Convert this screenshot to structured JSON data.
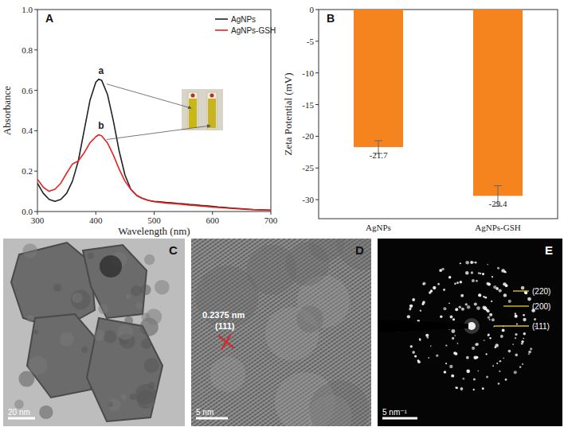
{
  "chart_data": [
    {
      "type": "line",
      "panel": "A",
      "x_label": "Wavelength (nm)",
      "y_label": "Absorbance",
      "x": [
        300,
        310,
        320,
        330,
        340,
        350,
        360,
        370,
        380,
        390,
        400,
        405,
        410,
        420,
        430,
        440,
        450,
        460,
        470,
        480,
        490,
        500,
        510,
        520,
        530,
        540,
        550,
        560,
        570,
        580,
        590,
        600,
        610,
        620,
        630,
        640,
        650,
        660,
        670,
        680,
        690,
        700
      ],
      "series": [
        {
          "name": "AgNPs",
          "color": "#222222",
          "values": [
            0.14,
            0.09,
            0.06,
            0.05,
            0.06,
            0.09,
            0.15,
            0.25,
            0.4,
            0.55,
            0.64,
            0.655,
            0.65,
            0.58,
            0.45,
            0.3,
            0.18,
            0.11,
            0.08,
            0.065,
            0.055,
            0.05,
            0.048,
            0.045,
            0.043,
            0.04,
            0.038,
            0.035,
            0.033,
            0.03,
            0.028,
            0.025,
            0.022,
            0.02,
            0.018,
            0.016,
            0.014,
            0.012,
            0.01,
            0.009,
            0.008,
            0.007
          ]
        },
        {
          "name": "AgNPs-GSH",
          "color": "#e8231f",
          "values": [
            0.16,
            0.12,
            0.1,
            0.11,
            0.14,
            0.19,
            0.235,
            0.25,
            0.29,
            0.34,
            0.37,
            0.38,
            0.375,
            0.34,
            0.28,
            0.21,
            0.15,
            0.11,
            0.08,
            0.065,
            0.055,
            0.048,
            0.045,
            0.042,
            0.04,
            0.038,
            0.035,
            0.032,
            0.03,
            0.027,
            0.025,
            0.022,
            0.02,
            0.018,
            0.016,
            0.014,
            0.012,
            0.01,
            0.009,
            0.008,
            0.007,
            0.006
          ]
        }
      ],
      "xlim": [
        300,
        700
      ],
      "xticks": [
        300,
        400,
        500,
        600,
        700
      ],
      "ylim": [
        0,
        1
      ],
      "yticks": [
        {
          "value": 0,
          "label": "0.0"
        },
        0.2,
        0.4,
        0.6,
        {
          "value": 0.8,
          "label": "0.8"
        },
        {
          "value": 1,
          "label": "1.0"
        }
      ],
      "legend": "upper right",
      "annotations": [
        {
          "text": "a",
          "x": 405,
          "y": 0.655
        },
        {
          "text": "b",
          "x": 405,
          "y": 0.38
        }
      ]
    },
    {
      "type": "bar",
      "panel": "B",
      "y_label": "Zeta Potential (mV)",
      "categories": [
        "AgNPs",
        "AgNPs-GSH"
      ],
      "values": [
        -21.7,
        -29.4
      ],
      "errors": [
        1.0,
        1.6
      ],
      "color": "#f5841f",
      "ylim": [
        -33,
        0
      ],
      "yticks": [
        0,
        -5,
        -10,
        -15,
        -20,
        -25,
        -30
      ],
      "data_labels": true
    }
  ],
  "images": [
    {
      "panel": "C",
      "scale_bar": "20 nm"
    },
    {
      "panel": "D",
      "annotations": [
        "0.2375 nm",
        "(111)"
      ],
      "scale_bar": "5 nm"
    },
    {
      "panel": "E",
      "rings": [
        "(220)",
        "(200)",
        "(111)"
      ],
      "scale_bar": "5 nm⁻¹"
    }
  ]
}
